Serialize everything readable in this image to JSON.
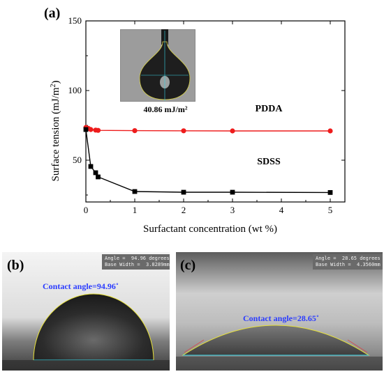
{
  "panels": {
    "a_label": "(a)",
    "b_label": "(b)",
    "c_label": "(c)"
  },
  "chart_data": {
    "type": "line",
    "title": "",
    "xlabel": "Surfactant concentration (wt %)",
    "ylabel": "Surface tension (mJ/m",
    "ylabel_sup": "2",
    "ylabel_end": ")",
    "xlim": [
      0,
      5.3
    ],
    "ylim": [
      20,
      150
    ],
    "xticks": [
      0,
      1,
      2,
      3,
      4,
      5
    ],
    "yticks": [
      50,
      100,
      150
    ],
    "grid": false,
    "legend": "none",
    "series": [
      {
        "name": "PDDA",
        "color": "#ee1c1c",
        "marker": "circle",
        "x": [
          0,
          0.05,
          0.1,
          0.2,
          0.25,
          1,
          2,
          3,
          5
        ],
        "y": [
          73.5,
          72.8,
          72.0,
          71.6,
          71.4,
          71.2,
          71.1,
          71.0,
          71.0
        ]
      },
      {
        "name": "SDSS",
        "color": "#000000",
        "marker": "square",
        "x": [
          0,
          0.1,
          0.2,
          0.25,
          1,
          2,
          3,
          5
        ],
        "y": [
          72.0,
          45.5,
          41.0,
          38.0,
          27.5,
          27.0,
          27.0,
          26.8
        ]
      }
    ],
    "inset_annotation": "40.86 mJ/m²"
  },
  "photo_b": {
    "readout": "Angle =  94.96 degrees\nBase Width =  3.8289mm",
    "contact_label": "Contact angle=94.96˚"
  },
  "photo_c": {
    "readout": "Angle =  28.65 degrees\nBase Width =  4.3560mm",
    "contact_label": "Contact angle=28.65˚"
  }
}
